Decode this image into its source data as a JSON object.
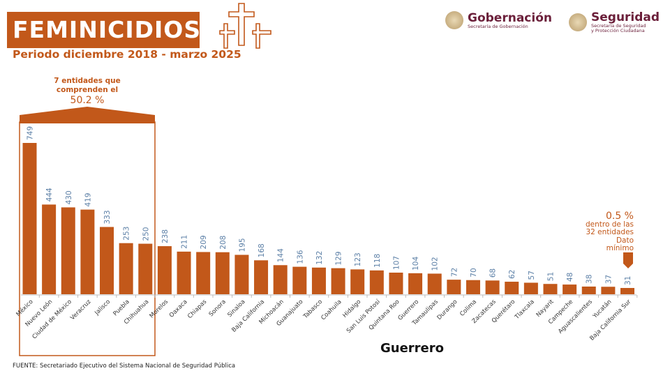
{
  "header": {
    "title": "FEMINICIDIOS",
    "subtitle": "Periodo diciembre 2018 - marzo 2025",
    "icon": "three-crosses-icon"
  },
  "logos": {
    "gobernacion": {
      "name": "Gobernación",
      "sub": "Secretaría de Gobernación"
    },
    "seguridad": {
      "name": "Seguridad",
      "sub1": "Secretaría de Seguridad",
      "sub2": "y Protección Ciudadana"
    }
  },
  "annotations": {
    "bracket_note": "7 entidades que comprenden el",
    "bracket_pct": "50.2 %",
    "min_pct": "0.5 %",
    "min_line1": "dentro de las",
    "min_line2": "32 entidades",
    "min_line3": "Dato",
    "min_line4": "mínimo",
    "highlight": "Guerrero"
  },
  "source": "FUENTE: Secretariado Ejecutivo del Sistema Nacional de Seguridad Pública",
  "colors": {
    "bar": "#c2581a",
    "value_label": "#5b7fa6",
    "title_bg": "#c2581a",
    "logo": "#6b1f3a"
  },
  "chart_data": {
    "type": "bar",
    "title": "FEMINICIDIOS",
    "subtitle": "Periodo diciembre 2018 - marzo 2025",
    "xlabel": "",
    "ylabel": "",
    "ylim": [
      0,
      749
    ],
    "grid": false,
    "categories": [
      "México",
      "Nuevo León",
      "Ciudad de México",
      "Veracruz",
      "Jalisco",
      "Puebla",
      "Chihuahua",
      "Morelos",
      "Oaxaca",
      "Chiapas",
      "Sonora",
      "Sinaloa",
      "Baja California",
      "Michoacán",
      "Guanajuato",
      "Tabasco",
      "Coahuila",
      "Hidalgo",
      "San Luis Potosí",
      "Quintana Roo",
      "Guerrero",
      "Tamaulipas",
      "Durango",
      "Colima",
      "Zacatecas",
      "Querétaro",
      "Tlaxcala",
      "Nayarit",
      "Campeche",
      "Aguascalientes",
      "Yucatán",
      "Baja California Sur"
    ],
    "values": [
      749,
      444,
      430,
      419,
      333,
      253,
      250,
      238,
      211,
      209,
      208,
      195,
      168,
      144,
      136,
      132,
      129,
      123,
      118,
      107,
      104,
      102,
      72,
      70,
      68,
      62,
      57,
      51,
      48,
      38,
      37,
      31
    ]
  }
}
